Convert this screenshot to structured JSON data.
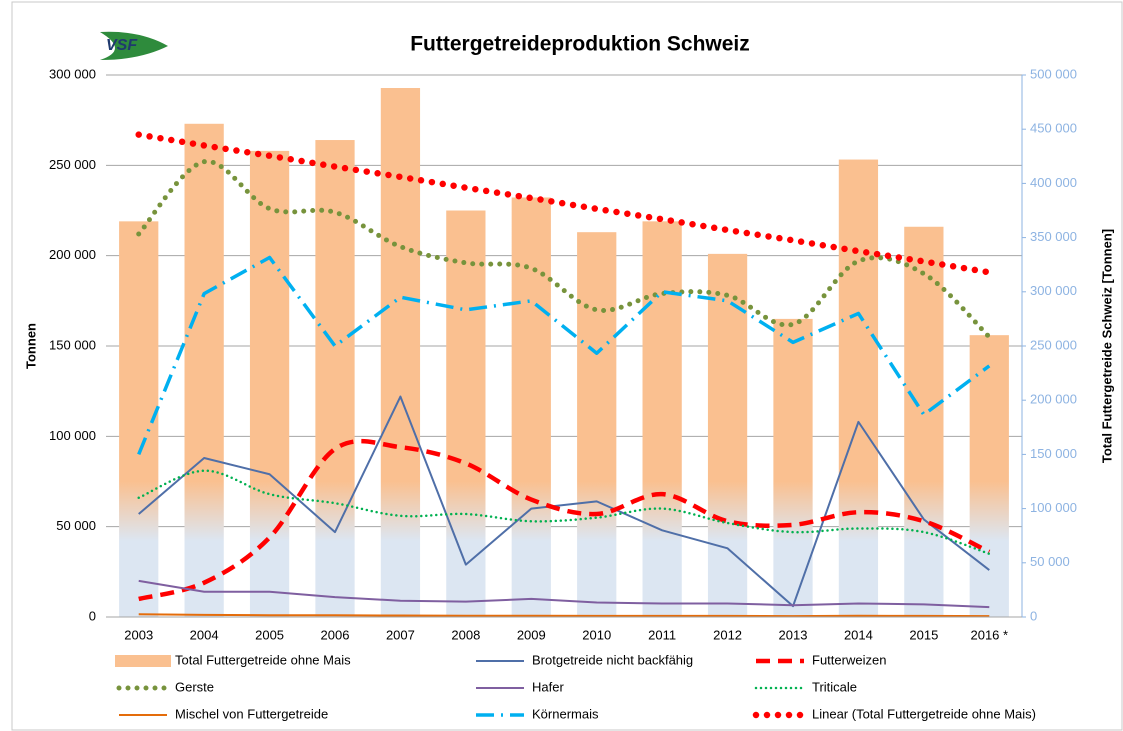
{
  "logo_text": "VSF",
  "chart_data": {
    "type": "combo",
    "title": "Futtergetreideproduktion Schweiz",
    "y_label": "Tonnen",
    "y2_label": "Total Futtergetreide Schweiz [Tonnen]",
    "categories": [
      "2003",
      "2004",
      "2005",
      "2006",
      "2007",
      "2008",
      "2009",
      "2010",
      "2011",
      "2012",
      "2013",
      "2014",
      "2015",
      "2016 *"
    ],
    "ylim": [
      0,
      300000
    ],
    "yticks": [
      0,
      {
        "value": 50000,
        "label": "50 000"
      },
      {
        "value": 100000,
        "label": "100 000"
      },
      {
        "value": 150000,
        "label": "150 000"
      },
      {
        "value": 200000,
        "label": "200 000"
      },
      {
        "value": 250000,
        "label": "250 000"
      },
      {
        "value": 300000,
        "label": "300 000"
      }
    ],
    "y2lim": [
      0,
      500000
    ],
    "y2ticks": [
      0,
      {
        "value": 50000,
        "label": "50 000"
      },
      {
        "value": 100000,
        "label": "100 000"
      },
      {
        "value": 150000,
        "label": "150 000"
      },
      {
        "value": 200000,
        "label": "200 000"
      },
      {
        "value": 250000,
        "label": "250 000"
      },
      {
        "value": 300000,
        "label": "300 000"
      },
      {
        "value": 350000,
        "label": "350 000"
      },
      {
        "value": 400000,
        "label": "400 000"
      },
      {
        "value": 450000,
        "label": "450 000"
      },
      {
        "value": 500000,
        "label": "500 000"
      }
    ],
    "grid": true,
    "legend": "bottom",
    "series": [
      {
        "name": "Total Futtergetreide ohne Mais",
        "type": "bar",
        "axis": "y2",
        "color": "#fac090",
        "values": [
          365000,
          455000,
          430000,
          440000,
          488000,
          375000,
          387000,
          355000,
          365000,
          335000,
          275000,
          422000,
          360000,
          260000
        ]
      },
      {
        "name": "Brotgetreide nicht backfähig",
        "type": "line",
        "style": "solid",
        "color": "#4f6fa8",
        "values": [
          57000,
          88000,
          79000,
          47000,
          122000,
          29000,
          60000,
          64000,
          48000,
          38000,
          6000,
          108000,
          54000,
          26000
        ]
      },
      {
        "name": "Futterweizen",
        "type": "line",
        "style": "dashed",
        "smooth": true,
        "color": "#ff0000",
        "values": [
          10000,
          19000,
          44000,
          93000,
          94000,
          85000,
          65000,
          57000,
          68000,
          53000,
          51000,
          58000,
          53000,
          36000
        ]
      },
      {
        "name": "Gerste",
        "type": "line",
        "style": "dotted",
        "smooth": true,
        "color": "#77933c",
        "values": [
          212000,
          252000,
          226000,
          224000,
          205000,
          196000,
          193000,
          170000,
          179000,
          178000,
          162000,
          197000,
          190000,
          155000
        ]
      },
      {
        "name": "Hafer",
        "type": "line",
        "style": "solid",
        "color": "#7f5fa0",
        "values": [
          20000,
          14000,
          14000,
          11000,
          9000,
          8500,
          10000,
          8000,
          7500,
          7500,
          6500,
          7500,
          7000,
          5500
        ]
      },
      {
        "name": "Triticale",
        "type": "line",
        "style": "fine-dotted",
        "smooth": true,
        "color": "#00b050",
        "values": [
          66000,
          81000,
          68000,
          63000,
          56000,
          57000,
          53000,
          55000,
          60000,
          52000,
          47000,
          49000,
          47000,
          35000
        ]
      },
      {
        "name": "Mischel von Futtergetreide",
        "type": "line",
        "style": "solid",
        "color": "#e46c0a",
        "values": [
          1500,
          1200,
          1000,
          1000,
          800,
          700,
          700,
          600,
          600,
          600,
          500,
          700,
          600,
          500
        ]
      },
      {
        "name": "Körnermais",
        "type": "line",
        "style": "dashdot",
        "color": "#00b0f0",
        "values": [
          90000,
          179000,
          199000,
          150000,
          177000,
          170000,
          175000,
          146000,
          180000,
          175000,
          152000,
          168000,
          112000,
          139000
        ]
      },
      {
        "name": "Linear (Total Futtergetreide ohne Mais)",
        "type": "line",
        "style": "dotted-bold",
        "axis": "y2",
        "color": "#ff0000",
        "values": [
          445000,
          435000,
          425500,
          415500,
          406000,
          396000,
          386500,
          376500,
          367000,
          357000,
          347500,
          337500,
          328000,
          318000
        ]
      }
    ]
  }
}
